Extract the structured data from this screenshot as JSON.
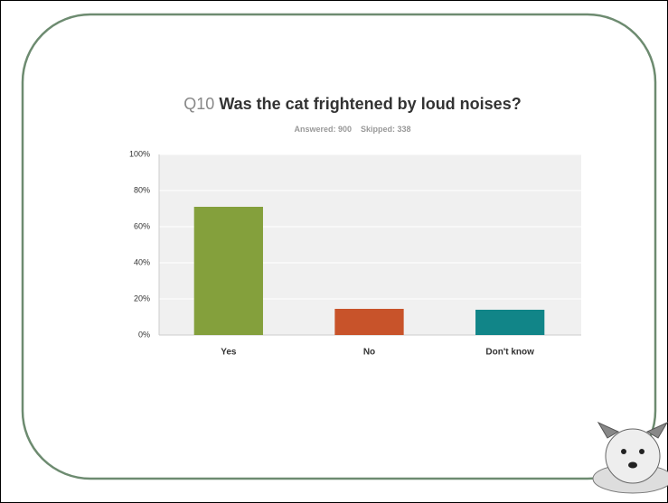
{
  "chart_data": {
    "type": "bar",
    "question_number": "Q10",
    "title": "Was the cat frightened by loud noises?",
    "answered": "Answered: 900",
    "skipped": "Skipped: 338",
    "categories": [
      "Yes",
      "No",
      "Don't know"
    ],
    "values": [
      71,
      14.5,
      14
    ],
    "colors": [
      "#84a03c",
      "#c8532a",
      "#118588"
    ],
    "ylim": [
      0,
      100
    ],
    "yticks": [
      {
        "value": 0,
        "label": "0%"
      },
      {
        "value": 20,
        "label": "20%"
      },
      {
        "value": 40,
        "label": "40%"
      },
      {
        "value": 60,
        "label": "60%"
      },
      {
        "value": 80,
        "label": "80%"
      },
      {
        "value": 100,
        "label": "100%"
      }
    ],
    "grid": true
  }
}
